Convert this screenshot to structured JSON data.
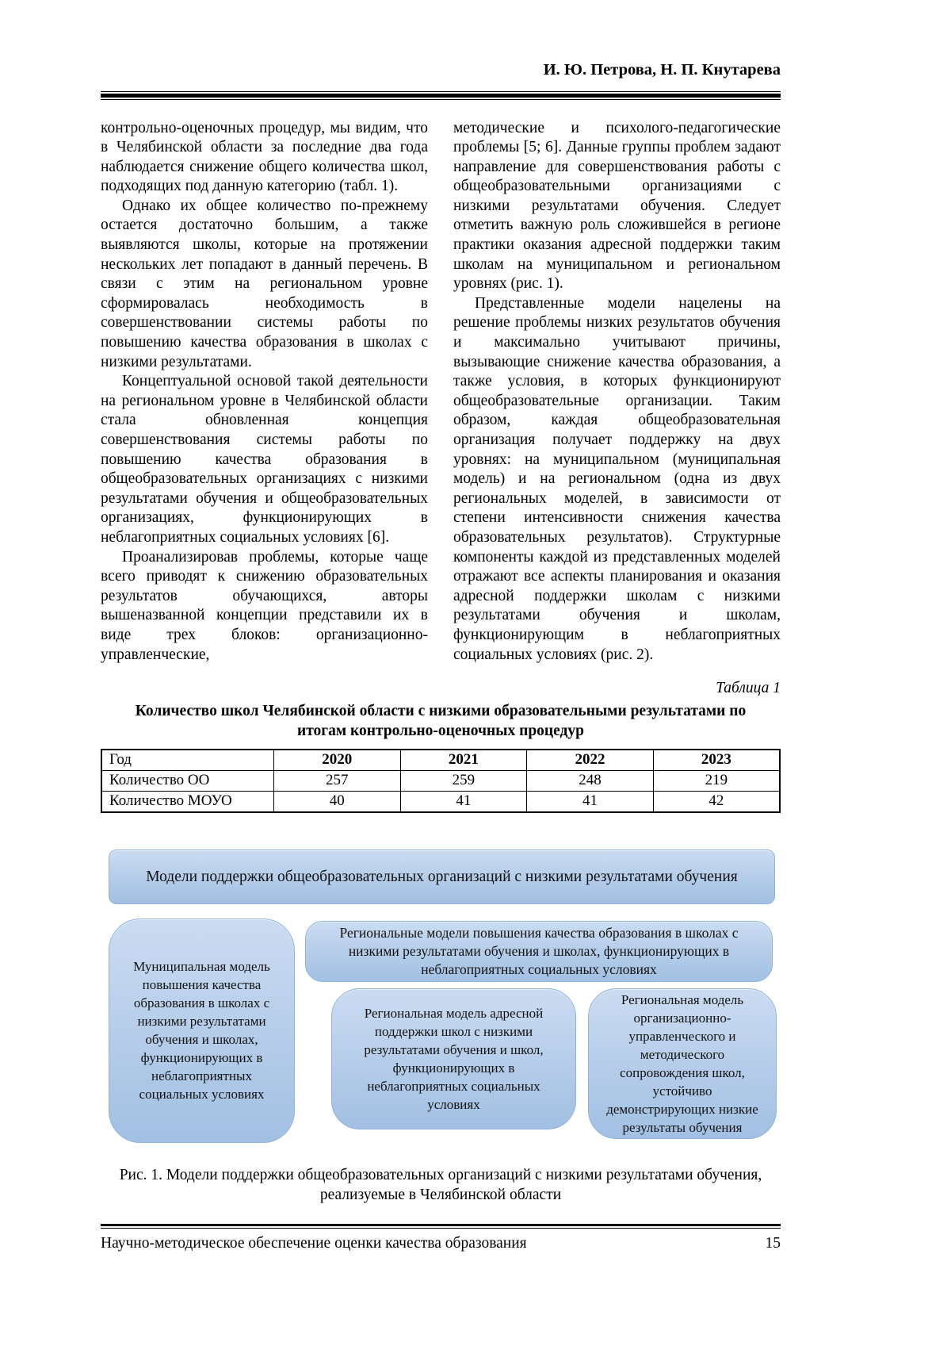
{
  "header": {
    "authors": "И. Ю. Петрова, Н. П. Кнутарева"
  },
  "body": {
    "left_column": [
      "контрольно-оценочных процедур, мы видим, что в Челябинской области за последние два года наблюдается снижение общего количества школ, подходящих под данную категорию (табл. 1).",
      "Однако их общее количество по-прежнему остается достаточно большим, а также выявляются школы, которые на протяжении нескольких лет попадают в данный перечень. В связи с этим на региональном уровне сформировалась необходимость в совершенствовании системы работы по повышению качества образования в школах с низкими результатами.",
      "Концептуальной основой такой деятельности на региональном уровне в Челябинской области стала обновленная концепция совершенствования системы работы по повышению качества образования в общеобразовательных организациях с низкими результатами обучения и общеобразовательных организациях, функционирующих в неблагоприятных социальных условиях [6].",
      "Проанализировав проблемы, которые чаще всего приводят к снижению образовательных результатов обучающихся, авторы вышеназванной концепции представили их в виде трех блоков: организационно-управленческие,"
    ],
    "right_column": [
      "методические и психолого-педагогические проблемы [5; 6]. Данные группы проблем задают направление для совершенствования работы с общеобразовательными организациями с низкими результатами обучения. Следует отметить важную роль сложившейся в регионе практики оказания адресной поддержки таким школам на муниципальном и региональном уровнях (рис. 1).",
      "Представленные модели нацелены на решение проблемы низких результатов обучения и максимально учитывают причины, вызывающие снижение качества образования, а также условия, в которых функционируют общеобразовательные организации. Таким образом, каждая общеобразовательная организация получает поддержку на двух уровнях: на муниципальном (муниципальная модель) и на региональном (одна из двух региональных моделей, в зависимости от степени интенсивности снижения качества образовательных результатов). Структурные компоненты каждой из представленных моделей отражают все аспекты планирования и оказания адресной поддержки школам с низкими результатами обучения и школам, функционирующим в неблагоприятных социальных условиях (рис. 2)."
    ]
  },
  "table": {
    "label": "Таблица 1",
    "title": "Количество школ Челябинской области с низкими образовательными результатами по итогам контрольно-оценочных процедур",
    "header_row": [
      "Год",
      "2020",
      "2021",
      "2022",
      "2023"
    ],
    "rows": [
      [
        "Количество ОО",
        "257",
        "259",
        "248",
        "219"
      ],
      [
        "Количество МОУО",
        "40",
        "41",
        "41",
        "42"
      ]
    ]
  },
  "figure": {
    "banner": "Модели поддержки общеобразовательных организаций с низкими результатами обучения",
    "box_municipal": "Муниципальная модель повышения качества образования в школах с низкими результатами обучения и школах, функционирующих в неблагоприятных социальных условиях",
    "box_regional_models": "Региональные модели повышения качества образования в школах с низкими результатами обучения и школах, функционирующих в неблагоприятных социальных условиях",
    "box_regional_address": "Региональная модель адресной поддержки школ с низкими результатами обучения и школ, функционирующих в неблагоприятных социальных условиях",
    "box_regional_org": "Региональная модель организационно-управленческого и методического сопровождения школ, устойчиво демонстрирующих низкие результаты обучения",
    "caption": "Рис. 1. Модели поддержки общеобразовательных организаций с низкими результатами обучения, реализуемые в Челябинской области"
  },
  "footer": {
    "journal_title": "Научно-методическое обеспечение оценки качества образования",
    "page_number": "15"
  },
  "colors": {
    "box_top": "#cbdcf1",
    "box_mid": "#b4cce9",
    "box_bottom": "#a2c0e3",
    "box_border": "#90b3db"
  }
}
